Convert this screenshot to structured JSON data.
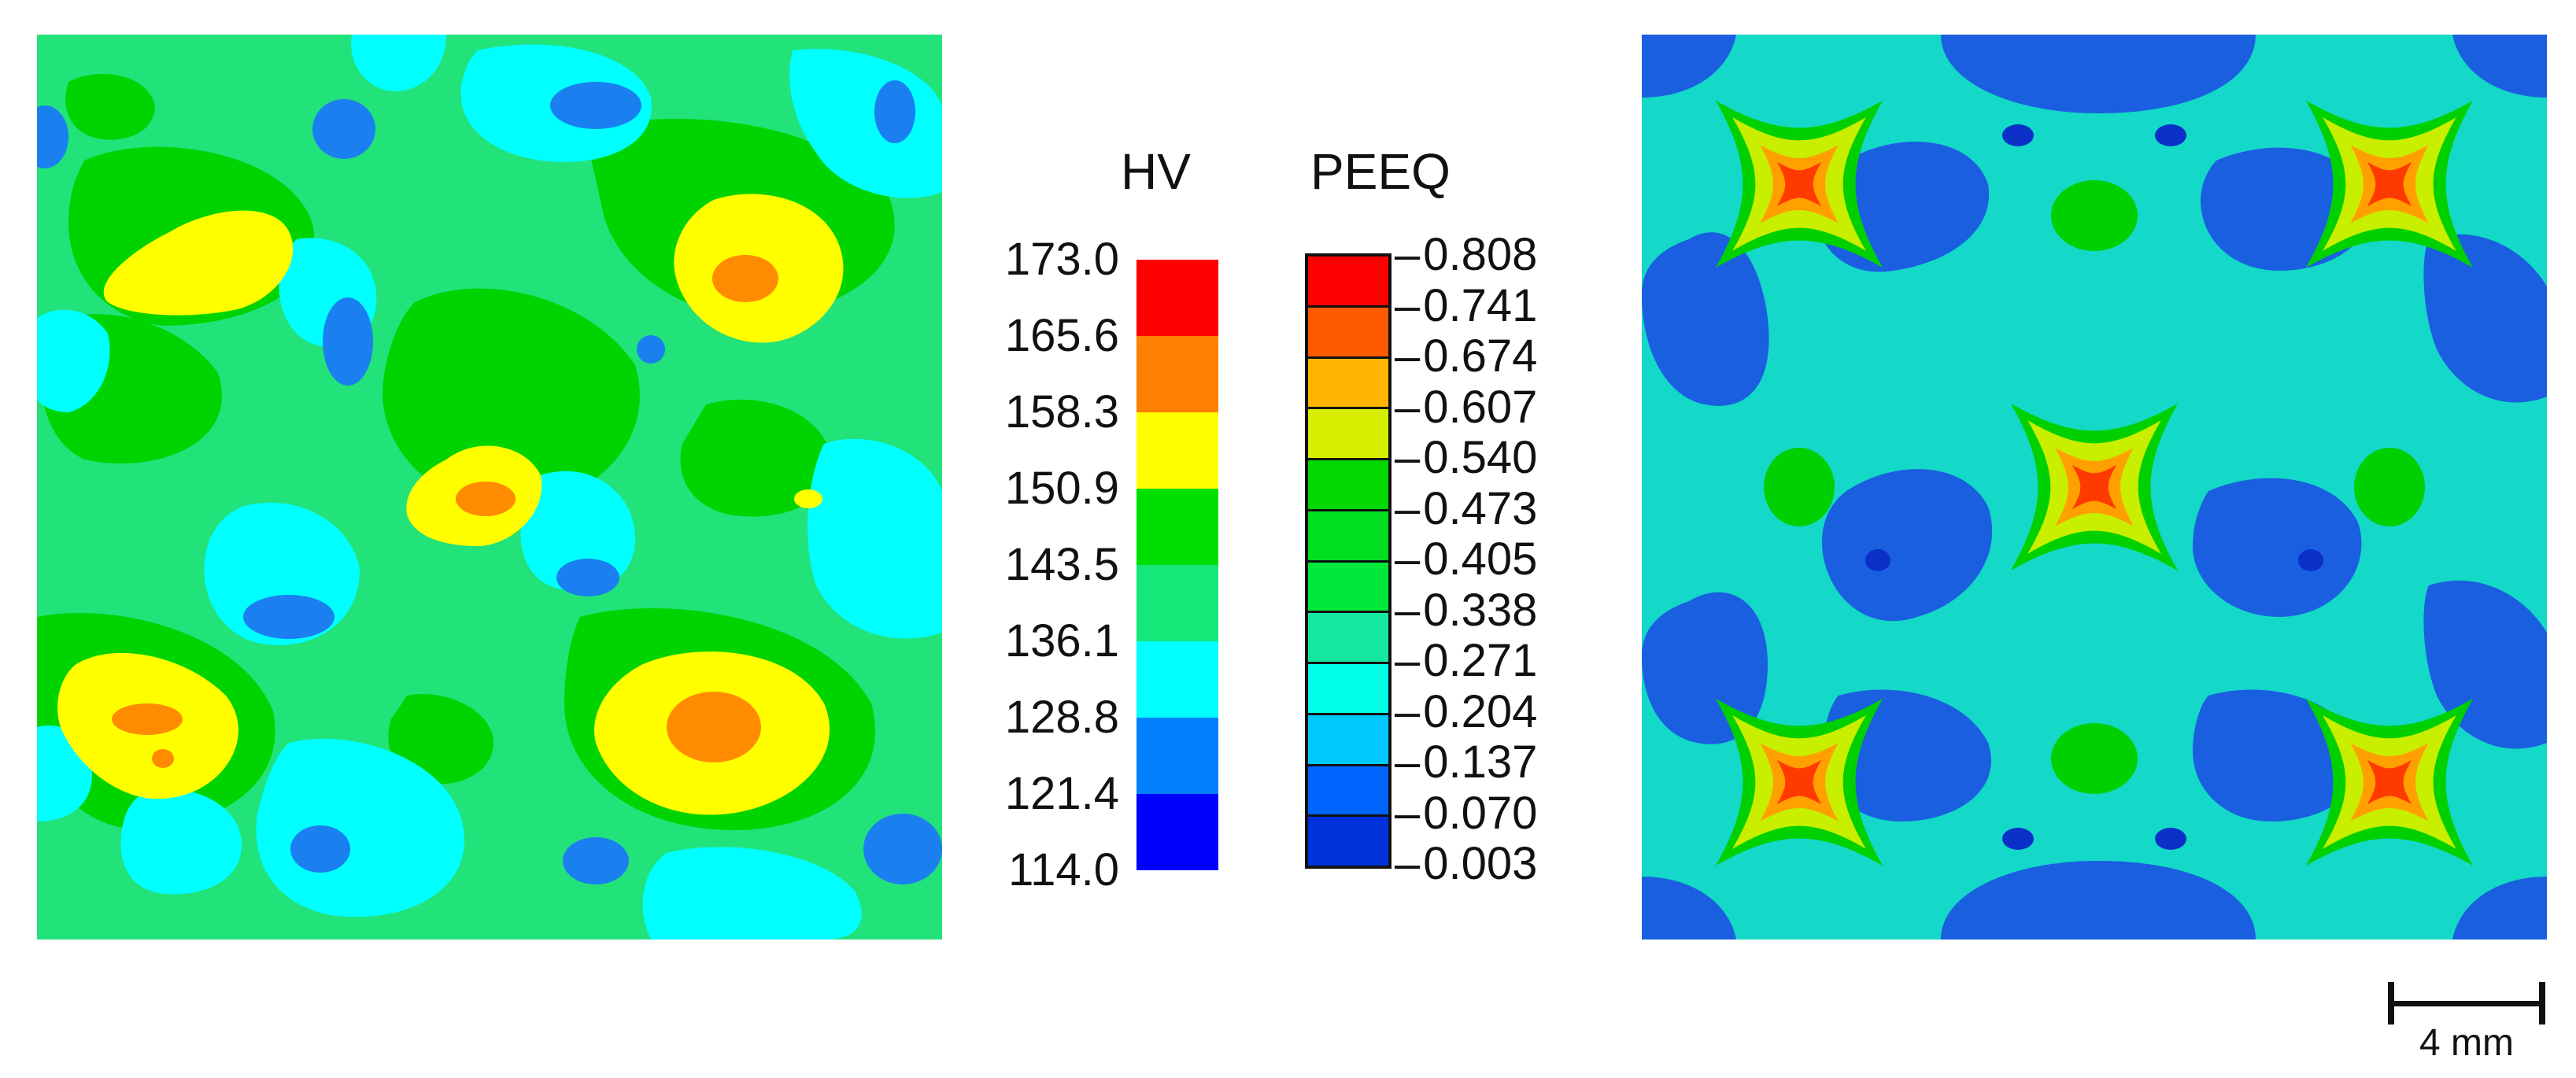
{
  "hv_legend": {
    "title": "HV",
    "ticks": [
      "173.0",
      "165.6",
      "158.3",
      "150.9",
      "143.5",
      "136.1",
      "128.8",
      "121.4",
      "114.0"
    ],
    "band_colors": [
      "#ff0000",
      "#ff7f00",
      "#ffff00",
      "#00e000",
      "#14e878",
      "#00ffff",
      "#0080ff",
      "#0000ff"
    ]
  },
  "peeq_legend": {
    "title": "PEEQ",
    "ticks": [
      "0.808",
      "0.741",
      "0.674",
      "0.607",
      "0.540",
      "0.473",
      "0.405",
      "0.338",
      "0.271",
      "0.204",
      "0.137",
      "0.070",
      "0.003"
    ],
    "band_colors": [
      "#ff0000",
      "#ff5a00",
      "#ffb400",
      "#d8f000",
      "#00d800",
      "#00e020",
      "#00e83c",
      "#14e8a0",
      "#00ffe6",
      "#00c8ff",
      "#0064ff",
      "#0032dc"
    ]
  },
  "scale_bar": {
    "label": "4 mm"
  },
  "map_colors": {
    "hv_background": "#14e878",
    "peeq_background": "#14d8c8"
  }
}
